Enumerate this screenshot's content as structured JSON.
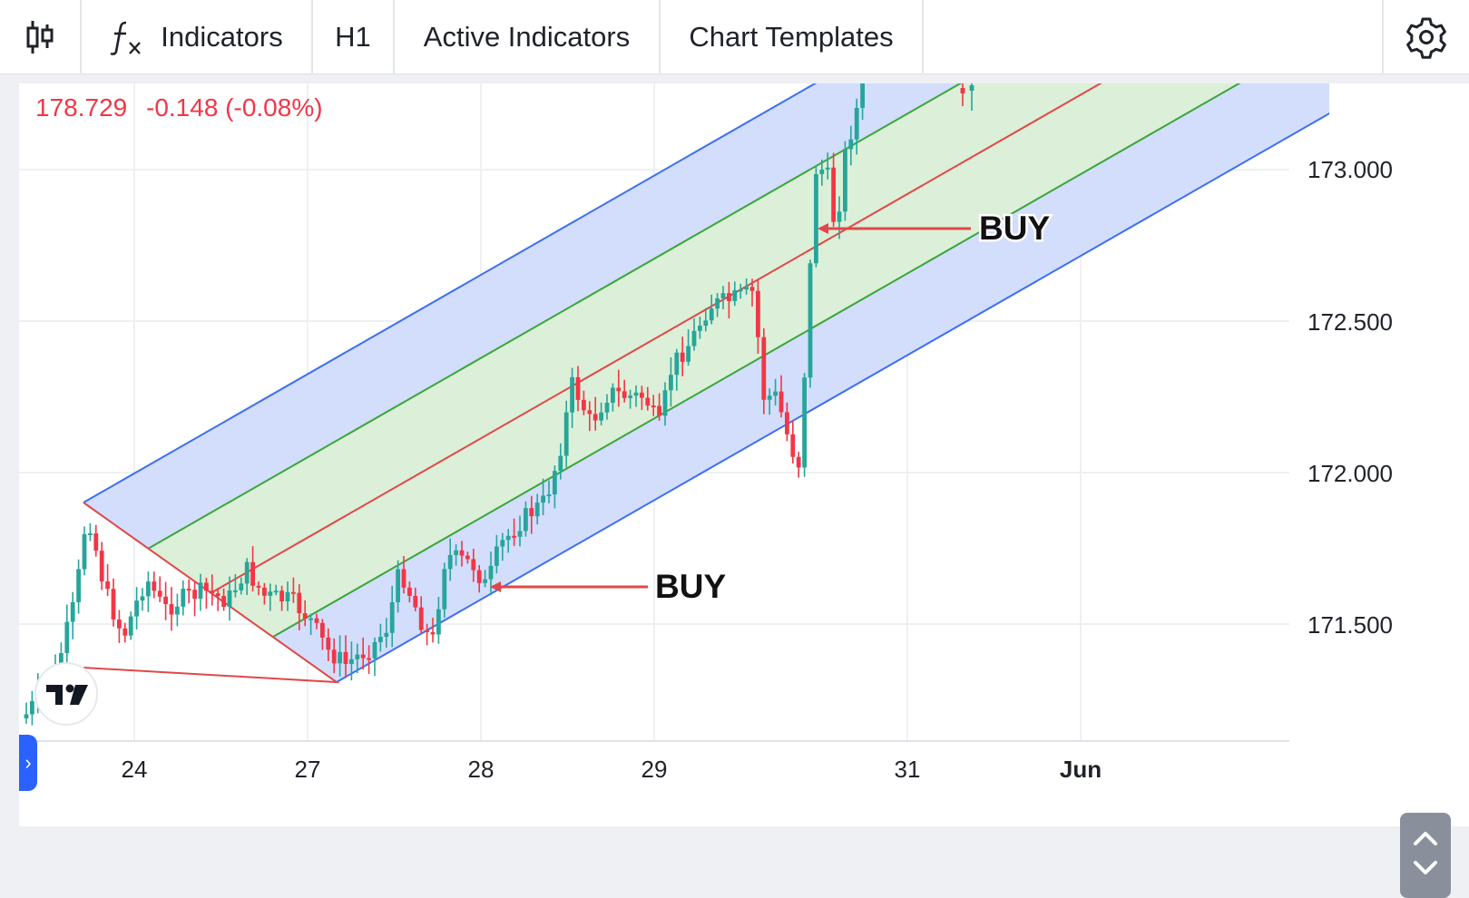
{
  "toolbar": {
    "candles_icon": "candlestick-icon",
    "indicators_label": "Indicators",
    "timeframe_label": "H1",
    "active_indicators_label": "Active Indicators",
    "chart_templates_label": "Chart Templates",
    "settings_icon": "gear-icon"
  },
  "legend": {
    "price": "178.729",
    "change": "-0.148 (-0.08%)",
    "color": "#f23645"
  },
  "y_axis_labels": [
    "173.000",
    "172.500",
    "172.000",
    "171.500"
  ],
  "x_axis_labels": [
    "24",
    "27",
    "28",
    "29",
    "31",
    "Jun"
  ],
  "annotations": [
    {
      "text": "BUY",
      "price": 172.81
    },
    {
      "text": "BUY",
      "price": 171.62
    }
  ],
  "colors": {
    "up": "#26a69a",
    "down": "#f23645",
    "channel_outer": "#3d6ff0",
    "channel_inner": "#3aa63a",
    "median": "#e04848",
    "outer_fill": "#d3ddfc",
    "inner_fill": "#dcefd8"
  }
}
